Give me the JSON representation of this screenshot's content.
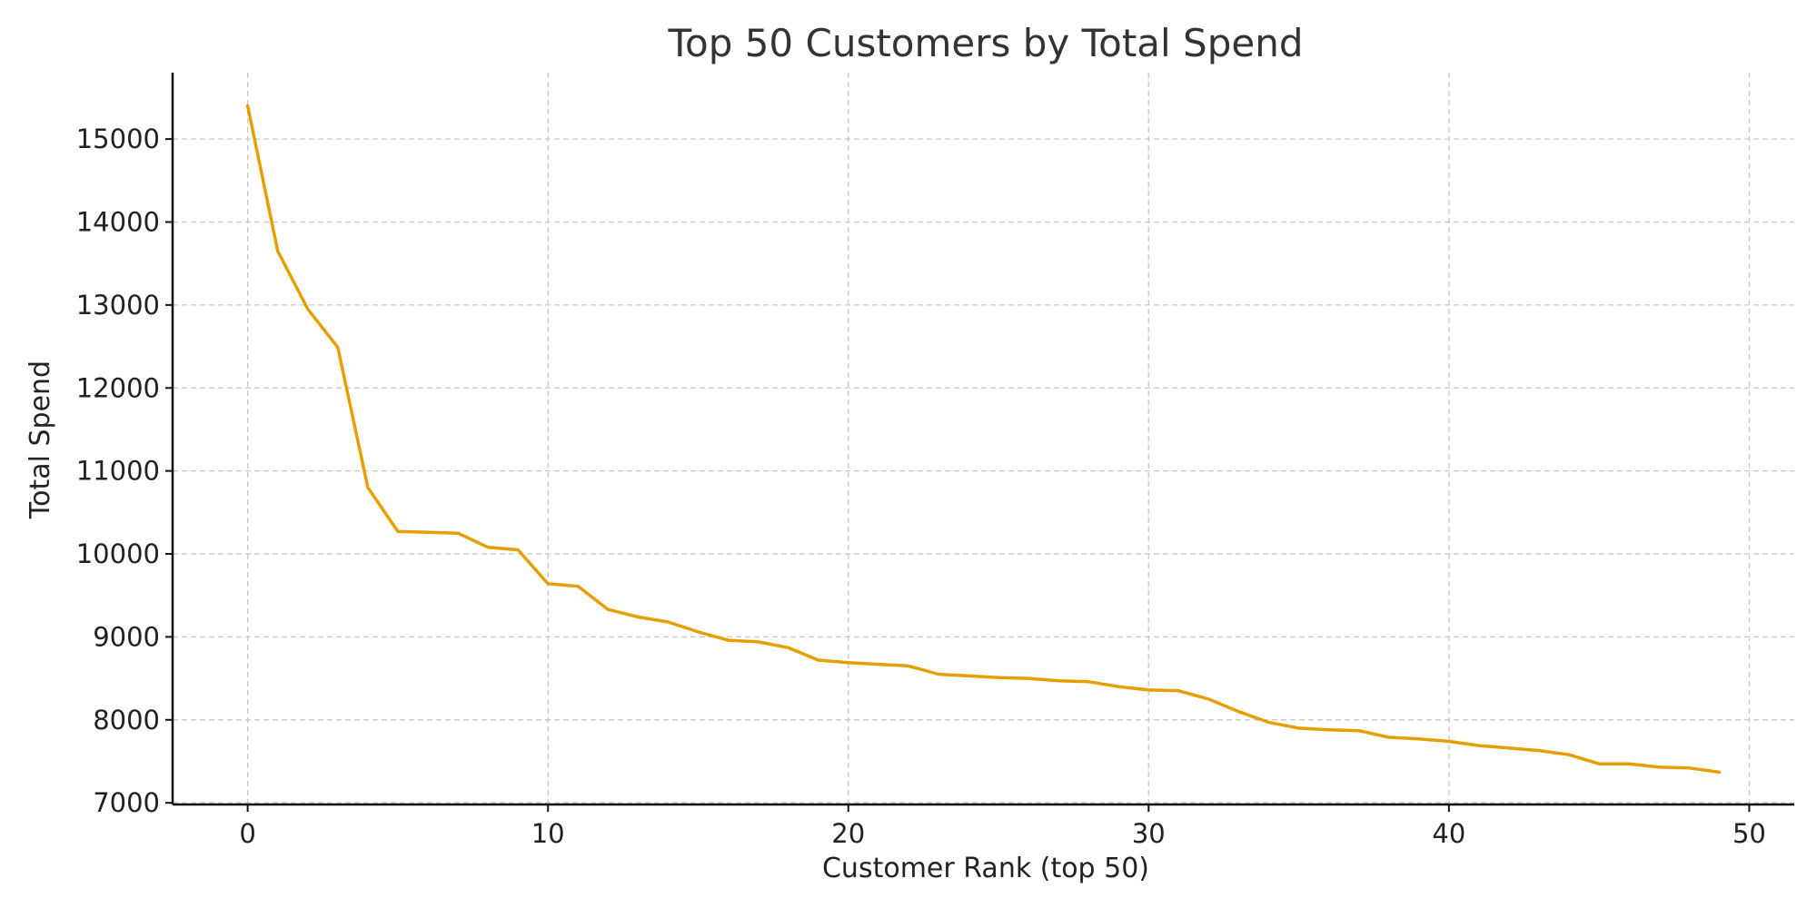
{
  "colors": {
    "series": "#E69F00",
    "grid": "#c8c8c8",
    "axis": "#111111",
    "text": "#222222"
  },
  "chart_data": {
    "type": "line",
    "title": "Top 50 Customers by Total Spend",
    "xlabel": "Customer Rank (top 50)",
    "ylabel": "Total Spend",
    "xlim": [
      -2.5,
      51.5
    ],
    "ylim": [
      6980,
      15800
    ],
    "xticks": [
      0,
      10,
      20,
      30,
      40,
      50
    ],
    "yticks": [
      7000,
      8000,
      9000,
      10000,
      11000,
      12000,
      13000,
      14000,
      15000
    ],
    "grid": true,
    "legend": "none",
    "series": [
      {
        "x": [
          0,
          1,
          2,
          3,
          4,
          5,
          6,
          7,
          8,
          9,
          10,
          11,
          12,
          13,
          14,
          15,
          16,
          17,
          18,
          19,
          20,
          21,
          22,
          23,
          24,
          25,
          26,
          27,
          28,
          29,
          30,
          31,
          32,
          33,
          34,
          35,
          36,
          37,
          38,
          39,
          40,
          41,
          42,
          43,
          44,
          45,
          46,
          47,
          48,
          49
        ],
        "values": [
          15400,
          13650,
          12950,
          12490,
          10800,
          10270,
          10260,
          10250,
          10080,
          10050,
          9640,
          9610,
          9330,
          9240,
          9180,
          9060,
          8960,
          8940,
          8870,
          8720,
          8690,
          8670,
          8650,
          8550,
          8530,
          8510,
          8500,
          8470,
          8460,
          8400,
          8360,
          8350,
          8250,
          8100,
          7970,
          7900,
          7880,
          7870,
          7790,
          7770,
          7740,
          7690,
          7660,
          7630,
          7580,
          7470,
          7470,
          7430,
          7420,
          7370
        ]
      }
    ]
  }
}
